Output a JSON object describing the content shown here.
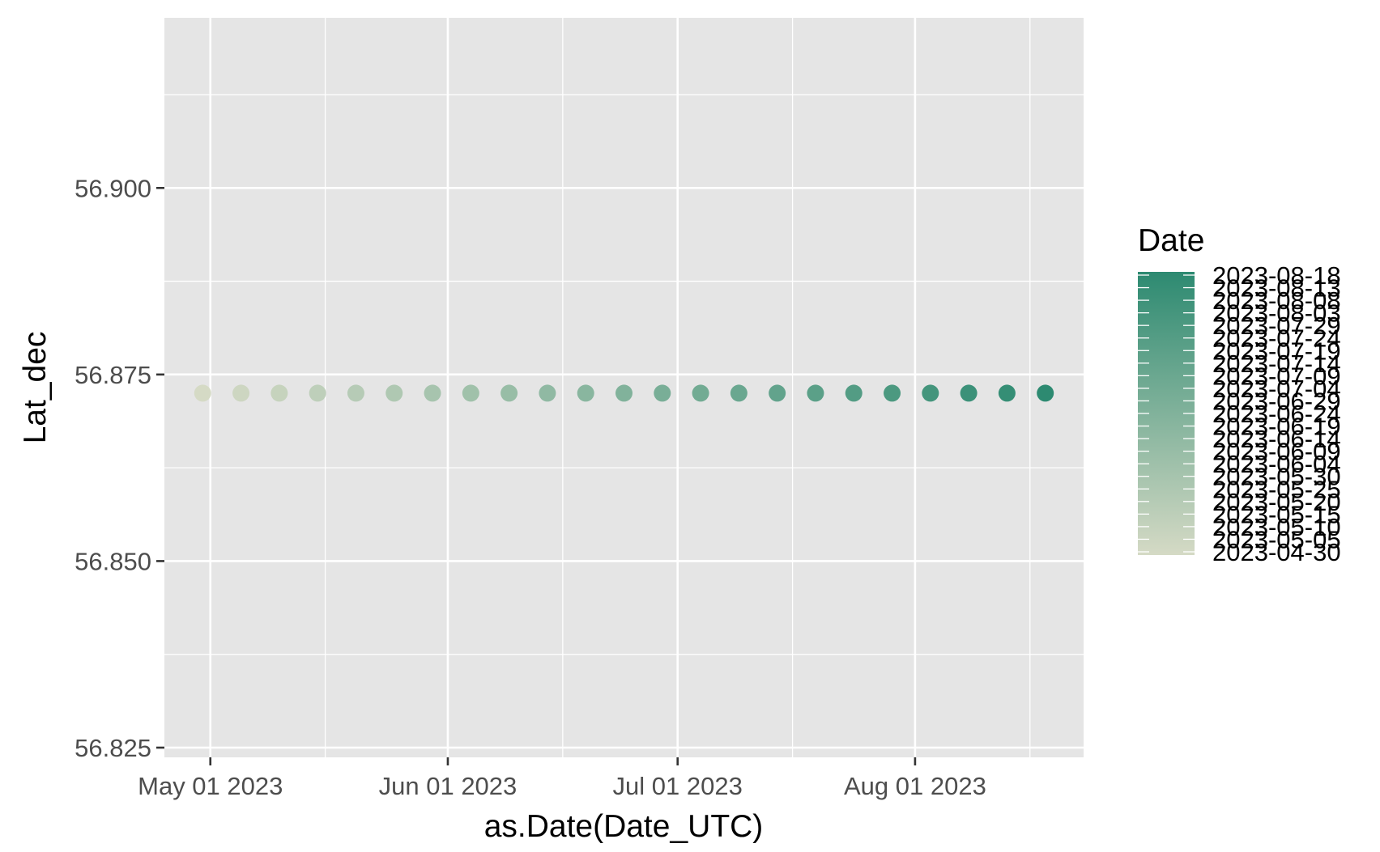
{
  "chart_data": {
    "type": "scatter",
    "xlabel": "as.Date(Date_UTC)",
    "ylabel": "Lat_dec",
    "xlim": [
      "2023-04-25",
      "2023-08-23"
    ],
    "ylim": [
      56.8237,
      56.9228
    ],
    "x_ticks": [
      {
        "value": "2023-05-01",
        "label": "May 01 2023"
      },
      {
        "value": "2023-06-01",
        "label": "Jun 01 2023"
      },
      {
        "value": "2023-07-01",
        "label": "Jul 01 2023"
      },
      {
        "value": "2023-08-01",
        "label": "Aug 01 2023"
      }
    ],
    "x_minor_ticks": [
      "2023-05-16",
      "2023-06-16",
      "2023-07-16",
      "2023-08-16"
    ],
    "y_ticks": [
      {
        "value": 56.825,
        "label": "56.825"
      },
      {
        "value": 56.85,
        "label": "56.850"
      },
      {
        "value": 56.875,
        "label": "56.875"
      },
      {
        "value": 56.9,
        "label": "56.900"
      }
    ],
    "y_minor_ticks": [
      56.8375,
      56.8625,
      56.8875,
      56.9125
    ],
    "grid": true,
    "panel_background": "#e5e5e5",
    "points": [
      {
        "x": "2023-04-30",
        "y": 56.8725
      },
      {
        "x": "2023-05-05",
        "y": 56.8725
      },
      {
        "x": "2023-05-10",
        "y": 56.8725
      },
      {
        "x": "2023-05-15",
        "y": 56.8725
      },
      {
        "x": "2023-05-20",
        "y": 56.8725
      },
      {
        "x": "2023-05-25",
        "y": 56.8725
      },
      {
        "x": "2023-05-30",
        "y": 56.8725
      },
      {
        "x": "2023-06-04",
        "y": 56.8725
      },
      {
        "x": "2023-06-09",
        "y": 56.8725
      },
      {
        "x": "2023-06-14",
        "y": 56.8725
      },
      {
        "x": "2023-06-19",
        "y": 56.8725
      },
      {
        "x": "2023-06-24",
        "y": 56.8725
      },
      {
        "x": "2023-06-29",
        "y": 56.8725
      },
      {
        "x": "2023-07-04",
        "y": 56.8725
      },
      {
        "x": "2023-07-09",
        "y": 56.8725
      },
      {
        "x": "2023-07-14",
        "y": 56.8725
      },
      {
        "x": "2023-07-19",
        "y": 56.8725
      },
      {
        "x": "2023-07-24",
        "y": 56.8725
      },
      {
        "x": "2023-07-29",
        "y": 56.8725
      },
      {
        "x": "2023-08-03",
        "y": 56.8725
      },
      {
        "x": "2023-08-08",
        "y": 56.8725
      },
      {
        "x": "2023-08-13",
        "y": 56.8725
      },
      {
        "x": "2023-08-18",
        "y": 56.8725
      }
    ],
    "color_scale": {
      "low": "#d5dac5",
      "high": "#2d8a71"
    },
    "legend": {
      "title": "Date",
      "position": "right",
      "labels": [
        "2023-08-18",
        "2023-08-13",
        "2023-08-08",
        "2023-08-03",
        "2023-07-29",
        "2023-07-24",
        "2023-07-19",
        "2023-07-14",
        "2023-07-09",
        "2023-07-04",
        "2023-06-29",
        "2023-06-24",
        "2023-06-19",
        "2023-06-14",
        "2023-06-09",
        "2023-06-04",
        "2023-05-30",
        "2023-05-25",
        "2023-05-20",
        "2023-05-15",
        "2023-05-10",
        "2023-05-05",
        "2023-04-30"
      ]
    }
  }
}
